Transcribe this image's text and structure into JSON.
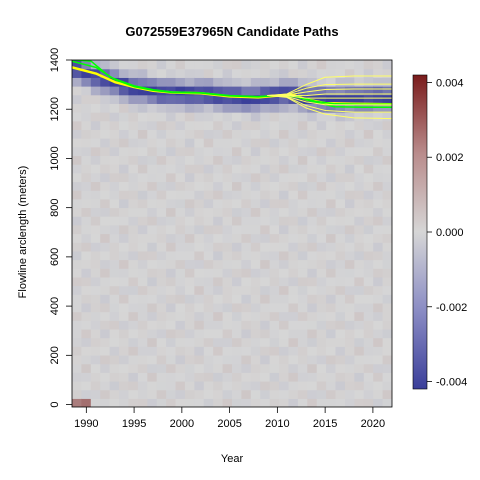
{
  "chart_data": {
    "type": "heatmap",
    "title": "G072559E37965N Candidate Paths",
    "xlabel": "Year",
    "ylabel": "Flowline arclength (meters)",
    "xlim": [
      1988.5,
      2022
    ],
    "ylim": [
      -10,
      1400
    ],
    "x_ticks": [
      "1990",
      "1995",
      "2000",
      "2005",
      "2010",
      "2015",
      "2020"
    ],
    "y_ticks": [
      "0",
      "200",
      "400",
      "600",
      "800",
      "1000",
      "1200",
      "1400"
    ],
    "colorbar": {
      "range": [
        -0.0042,
        0.0042
      ],
      "tick_values": [
        -0.004,
        -0.002,
        0.0,
        0.002,
        0.004
      ],
      "tick_labels": [
        "-0.004",
        "-0.002",
        "0.000",
        "0.002",
        "0.004"
      ],
      "low_color": "#3b3f9a",
      "mid_color": "#d6d6d6",
      "high_color": "#7a1c1c"
    },
    "background_field": {
      "description_values": "negative band (dark blue) near front position",
      "band_path": [
        [
          1988.5,
          1370
        ],
        [
          1992,
          1320
        ],
        [
          1995,
          1285
        ],
        [
          1998,
          1270
        ],
        [
          2000,
          1265
        ],
        [
          2003,
          1262
        ],
        [
          2005,
          1252
        ],
        [
          2007,
          1245
        ],
        [
          2009,
          1255
        ],
        [
          2011,
          1265
        ],
        [
          2013,
          1250
        ],
        [
          2015,
          1240
        ],
        [
          2018,
          1245
        ],
        [
          2022,
          1250
        ]
      ],
      "band_min_value": -0.0042
    },
    "series": [
      {
        "color": "#ffff00",
        "line_width": 2.5,
        "values": [
          [
            1988.5,
            1370
          ],
          [
            1991,
            1345
          ],
          [
            1993,
            1310
          ],
          [
            1995,
            1290
          ],
          [
            1997,
            1275
          ],
          [
            1999,
            1268
          ],
          [
            2002,
            1265
          ],
          [
            2005,
            1252
          ],
          [
            2008,
            1248
          ],
          [
            2010,
            1255
          ],
          [
            2011.5,
            1260
          ],
          [
            2013,
            1240
          ],
          [
            2015,
            1225
          ],
          [
            2018,
            1222
          ],
          [
            2022,
            1220
          ]
        ]
      },
      {
        "color": "#00ff00",
        "line_width": 1.5,
        "values": [
          [
            1988.5,
            1395
          ],
          [
            1991,
            1370
          ],
          [
            1993,
            1320
          ],
          [
            1995,
            1292
          ],
          [
            1997,
            1277
          ],
          [
            1999,
            1268
          ],
          [
            2002,
            1266
          ],
          [
            2005,
            1254
          ],
          [
            2008,
            1250
          ],
          [
            2010,
            1256
          ],
          [
            2012,
            1252
          ],
          [
            2014,
            1232
          ],
          [
            2016,
            1222
          ],
          [
            2019,
            1220
          ],
          [
            2022,
            1220
          ]
        ]
      },
      {
        "color": "#00ff00",
        "line_width": 1.5,
        "values": [
          [
            1988.5,
            1402
          ],
          [
            1990.5,
            1395
          ],
          [
            1992.5,
            1330
          ],
          [
            1995,
            1295
          ],
          [
            1997,
            1279
          ],
          [
            1999,
            1270
          ],
          [
            2002,
            1267
          ],
          [
            2005,
            1255
          ],
          [
            2008,
            1251
          ],
          [
            2010,
            1257
          ],
          [
            2012,
            1250
          ],
          [
            2014,
            1228
          ],
          [
            2016,
            1210
          ],
          [
            2019,
            1208
          ],
          [
            2022,
            1208
          ]
        ]
      },
      {
        "color": "#ffff66",
        "line_width": 1,
        "values": [
          [
            2009,
            1256
          ],
          [
            2011,
            1262
          ],
          [
            2013,
            1300
          ],
          [
            2015,
            1330
          ],
          [
            2018,
            1335
          ],
          [
            2022,
            1335
          ]
        ]
      },
      {
        "color": "#ffff66",
        "line_width": 1,
        "values": [
          [
            2009,
            1256
          ],
          [
            2011,
            1260
          ],
          [
            2013,
            1285
          ],
          [
            2015,
            1300
          ],
          [
            2018,
            1302
          ],
          [
            2022,
            1302
          ]
        ]
      },
      {
        "color": "#ffff66",
        "line_width": 1,
        "values": [
          [
            2009,
            1256
          ],
          [
            2011,
            1258
          ],
          [
            2013,
            1270
          ],
          [
            2015,
            1280
          ],
          [
            2018,
            1282
          ],
          [
            2022,
            1282
          ]
        ]
      },
      {
        "color": "#ffff66",
        "line_width": 1,
        "values": [
          [
            2009,
            1256
          ],
          [
            2011,
            1256
          ],
          [
            2013,
            1255
          ],
          [
            2015,
            1262
          ],
          [
            2018,
            1262
          ],
          [
            2022,
            1262
          ]
        ]
      },
      {
        "color": "#ffff66",
        "line_width": 1,
        "values": [
          [
            2009,
            1256
          ],
          [
            2011,
            1255
          ],
          [
            2013,
            1245
          ],
          [
            2015,
            1245
          ],
          [
            2018,
            1245
          ],
          [
            2022,
            1245
          ]
        ]
      },
      {
        "color": "#ffff66",
        "line_width": 1,
        "values": [
          [
            2009,
            1256
          ],
          [
            2011,
            1252
          ],
          [
            2013,
            1230
          ],
          [
            2015,
            1218
          ],
          [
            2018,
            1218
          ],
          [
            2022,
            1218
          ]
        ]
      },
      {
        "color": "#ffff66",
        "line_width": 1,
        "values": [
          [
            2009,
            1256
          ],
          [
            2011,
            1250
          ],
          [
            2013,
            1215
          ],
          [
            2015,
            1195
          ],
          [
            2018,
            1188
          ],
          [
            2022,
            1188
          ]
        ]
      },
      {
        "color": "#ffff66",
        "line_width": 1,
        "values": [
          [
            2009,
            1256
          ],
          [
            2011,
            1248
          ],
          [
            2013,
            1205
          ],
          [
            2015,
            1180
          ],
          [
            2018,
            1165
          ],
          [
            2022,
            1162
          ]
        ]
      }
    ],
    "grid": false,
    "legend": "colorbar-right"
  }
}
